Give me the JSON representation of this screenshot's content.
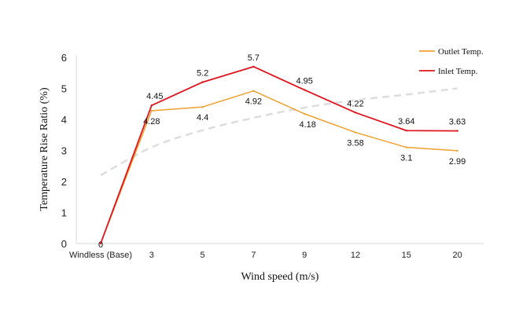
{
  "chart_data": {
    "type": "line",
    "categories": [
      "Windless (Base)",
      "3",
      "5",
      "7",
      "9",
      "12",
      "15",
      "20"
    ],
    "series": [
      {
        "name": "Outlet Temp.",
        "color": "#f0a030",
        "values": [
          0,
          4.28,
          4.4,
          4.92,
          4.18,
          3.58,
          3.1,
          2.99
        ],
        "labels": [
          "0",
          "4.28",
          "4.4",
          "4.92",
          "4.18",
          "3.58",
          "3.1",
          "2.99"
        ]
      },
      {
        "name": "Inlet Temp.",
        "color": "#e0141c",
        "values": [
          0,
          4.45,
          5.2,
          5.7,
          4.95,
          4.22,
          3.64,
          3.63
        ],
        "labels": [
          "0",
          "4.45",
          "5.2",
          "5.7",
          "4.95",
          "4.22",
          "3.64",
          "3.63"
        ]
      }
    ],
    "trendline": {
      "style": "dashed",
      "color": "#dddddd",
      "values": [
        2.2,
        3.1,
        3.65,
        4.05,
        4.38,
        4.62,
        4.8,
        5.0
      ]
    },
    "xlabel": "Wind speed (m/s)",
    "ylabel": "Temperature Rise Ratio (%)",
    "ylim": [
      0,
      6
    ],
    "yticks": [
      "0",
      "1",
      "2",
      "3",
      "4",
      "5",
      "6"
    ],
    "grid": false,
    "legend_position": "top-right"
  }
}
